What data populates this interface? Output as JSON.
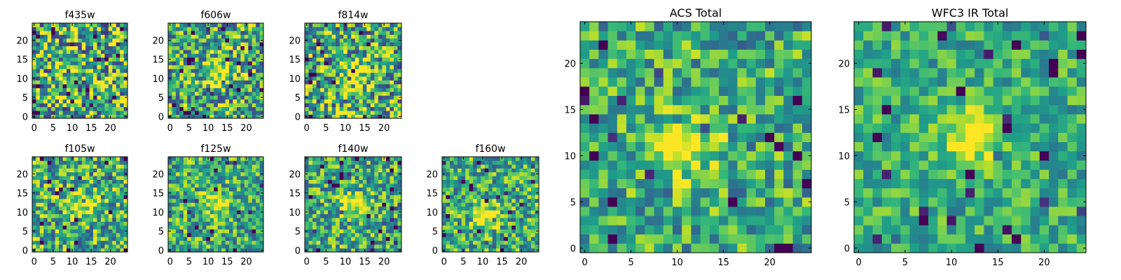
{
  "chart_data": [
    {
      "type": "heatmap",
      "title": "f435w",
      "xticks": [
        "0",
        "5",
        "10",
        "15",
        "20"
      ],
      "yticks": [
        "0",
        "5",
        "10",
        "15",
        "20"
      ],
      "xlim": [
        0,
        25
      ],
      "ylim": [
        0,
        25
      ],
      "grid_size": 25,
      "colormap": "viridis",
      "peak": null,
      "noise": 0.65,
      "seed": 11
    },
    {
      "type": "heatmap",
      "title": "f606w",
      "xticks": [
        "0",
        "5",
        "10",
        "15",
        "20"
      ],
      "yticks": [
        "0",
        "5",
        "10",
        "15",
        "20"
      ],
      "xlim": [
        0,
        25
      ],
      "ylim": [
        0,
        25
      ],
      "grid_size": 25,
      "colormap": "viridis",
      "peak": [
        12,
        11
      ],
      "noise": 0.55,
      "seed": 23
    },
    {
      "type": "heatmap",
      "title": "f814w",
      "xticks": [
        "0",
        "5",
        "10",
        "15",
        "20"
      ],
      "yticks": [
        "0",
        "5",
        "10",
        "15",
        "20"
      ],
      "xlim": [
        0,
        25
      ],
      "ylim": [
        0,
        25
      ],
      "grid_size": 25,
      "colormap": "viridis",
      "peak": [
        12,
        11
      ],
      "noise": 0.6,
      "seed": 37
    },
    {
      "type": "heatmap",
      "title": "f105w",
      "xticks": [
        "0",
        "5",
        "10",
        "15",
        "20"
      ],
      "yticks": [
        "0",
        "5",
        "10",
        "15",
        "20"
      ],
      "xlim": [
        0,
        25
      ],
      "ylim": [
        0,
        25
      ],
      "grid_size": 25,
      "colormap": "viridis",
      "peak": [
        13,
        12
      ],
      "noise": 0.5,
      "seed": 41
    },
    {
      "type": "heatmap",
      "title": "f125w",
      "xticks": [
        "0",
        "5",
        "10",
        "15",
        "20"
      ],
      "yticks": [
        "0",
        "5",
        "10",
        "15",
        "20"
      ],
      "xlim": [
        0,
        25
      ],
      "ylim": [
        0,
        25
      ],
      "grid_size": 25,
      "colormap": "viridis",
      "peak": [
        12,
        12
      ],
      "noise": 0.45,
      "seed": 53
    },
    {
      "type": "heatmap",
      "title": "f140w",
      "xticks": [
        "0",
        "5",
        "10",
        "15",
        "20"
      ],
      "yticks": [
        "0",
        "5",
        "10",
        "15",
        "20"
      ],
      "xlim": [
        0,
        25
      ],
      "ylim": [
        0,
        25
      ],
      "grid_size": 25,
      "colormap": "viridis",
      "peak": [
        12,
        12
      ],
      "noise": 0.45,
      "seed": 67
    },
    {
      "type": "heatmap",
      "title": "f160w",
      "xticks": [
        "0",
        "5",
        "10",
        "15",
        "20"
      ],
      "yticks": [
        "0",
        "5",
        "10",
        "15",
        "20"
      ],
      "xlim": [
        0,
        25
      ],
      "ylim": [
        0,
        25
      ],
      "grid_size": 25,
      "colormap": "viridis",
      "peak": [
        11,
        9
      ],
      "noise": 0.45,
      "seed": 71
    },
    {
      "type": "heatmap",
      "title": "ACS Total",
      "xticks": [
        "0",
        "5",
        "10",
        "15",
        "20"
      ],
      "yticks": [
        "0",
        "5",
        "10",
        "15",
        "20"
      ],
      "xlim": [
        0,
        25
      ],
      "ylim": [
        0,
        25
      ],
      "grid_size": 25,
      "colormap": "viridis",
      "peak": [
        11,
        11
      ],
      "noise": 0.4,
      "seed": 83
    },
    {
      "type": "heatmap",
      "title": "WFC3 IR Total",
      "xticks": [
        "0",
        "5",
        "10",
        "15",
        "20"
      ],
      "yticks": [
        "0",
        "5",
        "10",
        "15",
        "20"
      ],
      "xlim": [
        0,
        25
      ],
      "ylim": [
        0,
        25
      ],
      "grid_size": 25,
      "colormap": "viridis",
      "peak": [
        12,
        12
      ],
      "noise": 0.3,
      "seed": 97
    }
  ]
}
